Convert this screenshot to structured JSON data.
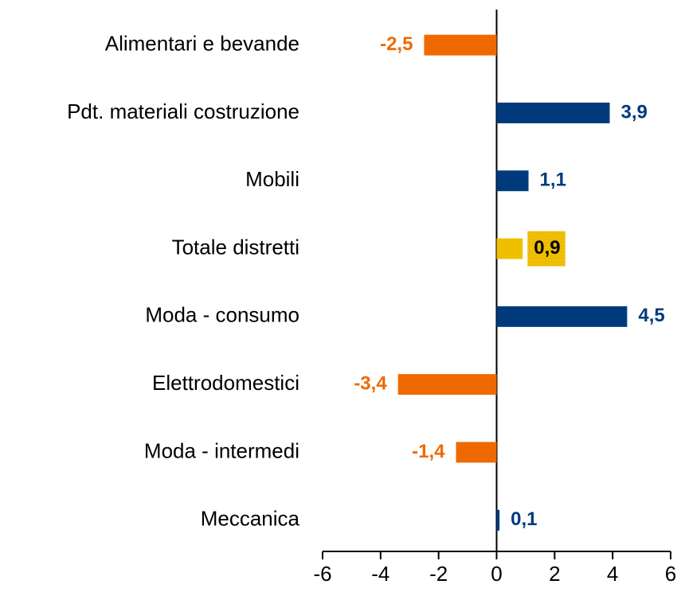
{
  "chart_data": {
    "type": "bar",
    "orientation": "horizontal",
    "categories": [
      "Alimentari e bevande",
      "Pdt. materiali costruzione",
      "Mobili",
      "Totale distretti",
      "Moda - consumo",
      "Elettrodomestici",
      "Moda - intermedi",
      "Meccanica"
    ],
    "values": [
      -2.5,
      3.9,
      1.1,
      0.9,
      4.5,
      -3.4,
      -1.4,
      0.1
    ],
    "value_labels": [
      "-2,5",
      "3,9",
      "1,1",
      "0,9",
      "4,5",
      "-3,4",
      "-1,4",
      "0,1"
    ],
    "colors": [
      "#ee6a00",
      "#003a7d",
      "#003a7d",
      "#f0c000",
      "#003a7d",
      "#ee6a00",
      "#ee6a00",
      "#003a7d"
    ],
    "label_colors": [
      "#ee6a00",
      "#003a7d",
      "#003a7d",
      "#000000",
      "#003a7d",
      "#ee6a00",
      "#ee6a00",
      "#003a7d"
    ],
    "label_backgrounds": [
      null,
      null,
      null,
      "#f0c000",
      null,
      null,
      null,
      null
    ],
    "xlim": [
      -6,
      6
    ],
    "xticks": [
      -6,
      -4,
      -2,
      0,
      2,
      4,
      6
    ],
    "grid": false
  }
}
